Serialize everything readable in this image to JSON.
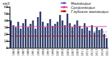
{
  "chart_data": {
    "type": "bar",
    "y_label": "км3",
    "categories": [
      null,
      "1983",
      null,
      "1985",
      null,
      "1987",
      null,
      "1989",
      null,
      "1991",
      null,
      "1993",
      null,
      "1995",
      null,
      "1997",
      null,
      "1999",
      null,
      "2001",
      null,
      "2003",
      null,
      "2005",
      null,
      "2007",
      null,
      "2009",
      null,
      "2011",
      null,
      "2013",
      null,
      "2015",
      null,
      "2017",
      null,
      "2019",
      null,
      "2021"
    ],
    "values": [
      40,
      33,
      30,
      38,
      28,
      36,
      42,
      30,
      35,
      40,
      28,
      45,
      53,
      38,
      30,
      36,
      42,
      32,
      35,
      38,
      48,
      40,
      33,
      50,
      36,
      30,
      34,
      40,
      32,
      28,
      36,
      30,
      25,
      33,
      22,
      30,
      26,
      28,
      20,
      14
    ],
    "color": "#2b3a67",
    "reference_lines": [
      {
        "name": "Маловодье",
        "color": "#5a5fd0",
        "line_style": "dashed",
        "value": 23
      },
      {
        "name": "Средневодье",
        "color": "#e0409a",
        "line_style": "solid",
        "value": 31
      },
      {
        "name": "Глубокое маловодье",
        "color": "#c00000",
        "line_style": "dashed",
        "value": 17
      }
    ],
    "ylim": [
      0,
      60
    ],
    "yticks": [
      0,
      10,
      20,
      30,
      40,
      50,
      60
    ],
    "grid": false,
    "legend": "top-right"
  }
}
